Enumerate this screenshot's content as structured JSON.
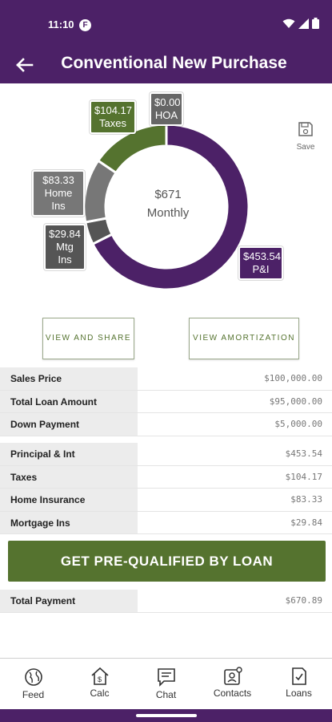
{
  "status_bar": {
    "time": "11:10",
    "app_icon_letter": "F"
  },
  "header": {
    "title": "Conventional New Purchase",
    "back_icon": "arrow-left-icon"
  },
  "chart_data": {
    "type": "pie",
    "center_amount": "$671",
    "center_label": "Monthly",
    "slices": [
      {
        "name": "P&I",
        "label": "$453.54",
        "value": 453.54,
        "color": "#4c2167"
      },
      {
        "name": "Mtg Ins",
        "label": "$29.84",
        "value": 29.84,
        "color": "#555555"
      },
      {
        "name": "Home Ins",
        "label": "$83.33",
        "value": 83.33,
        "color": "#777777"
      },
      {
        "name": "Taxes",
        "label": "$104.17",
        "value": 104.17,
        "color": "#55732f"
      },
      {
        "name": "HOA",
        "label": "$0.00",
        "value": 0.0,
        "color": "#666666"
      }
    ]
  },
  "save": {
    "label": "Save",
    "icon": "floppy-disk-icon"
  },
  "actions": {
    "view_share": "VIEW AND SHARE",
    "view_amortization": "VIEW AMORTIZATION"
  },
  "loan_table": [
    {
      "label": "Sales Price",
      "value": "$100,000.00"
    },
    {
      "label": "Total Loan Amount",
      "value": "$95,000.00"
    },
    {
      "label": "Down Payment",
      "value": "$5,000.00"
    }
  ],
  "payment_table": [
    {
      "label": "Principal & Int",
      "value": "$453.54"
    },
    {
      "label": "Taxes",
      "value": "$104.17"
    },
    {
      "label": "Home Insurance",
      "value": "$83.33"
    },
    {
      "label": "Mortgage Ins",
      "value": "$29.84"
    }
  ],
  "cta": {
    "label": "GET PRE-QUALIFIED BY LOAN"
  },
  "total": {
    "label": "Total Payment",
    "value": "$670.89"
  },
  "nav": [
    {
      "label": "Feed",
      "icon": "globe-icon"
    },
    {
      "label": "Calc",
      "icon": "house-calculator-icon"
    },
    {
      "label": "Chat",
      "icon": "chat-bubble-icon"
    },
    {
      "label": "Contacts",
      "icon": "contacts-icon"
    },
    {
      "label": "Loans",
      "icon": "document-check-icon"
    }
  ],
  "colors": {
    "brand": "#4c2167",
    "accent": "#55732f"
  }
}
